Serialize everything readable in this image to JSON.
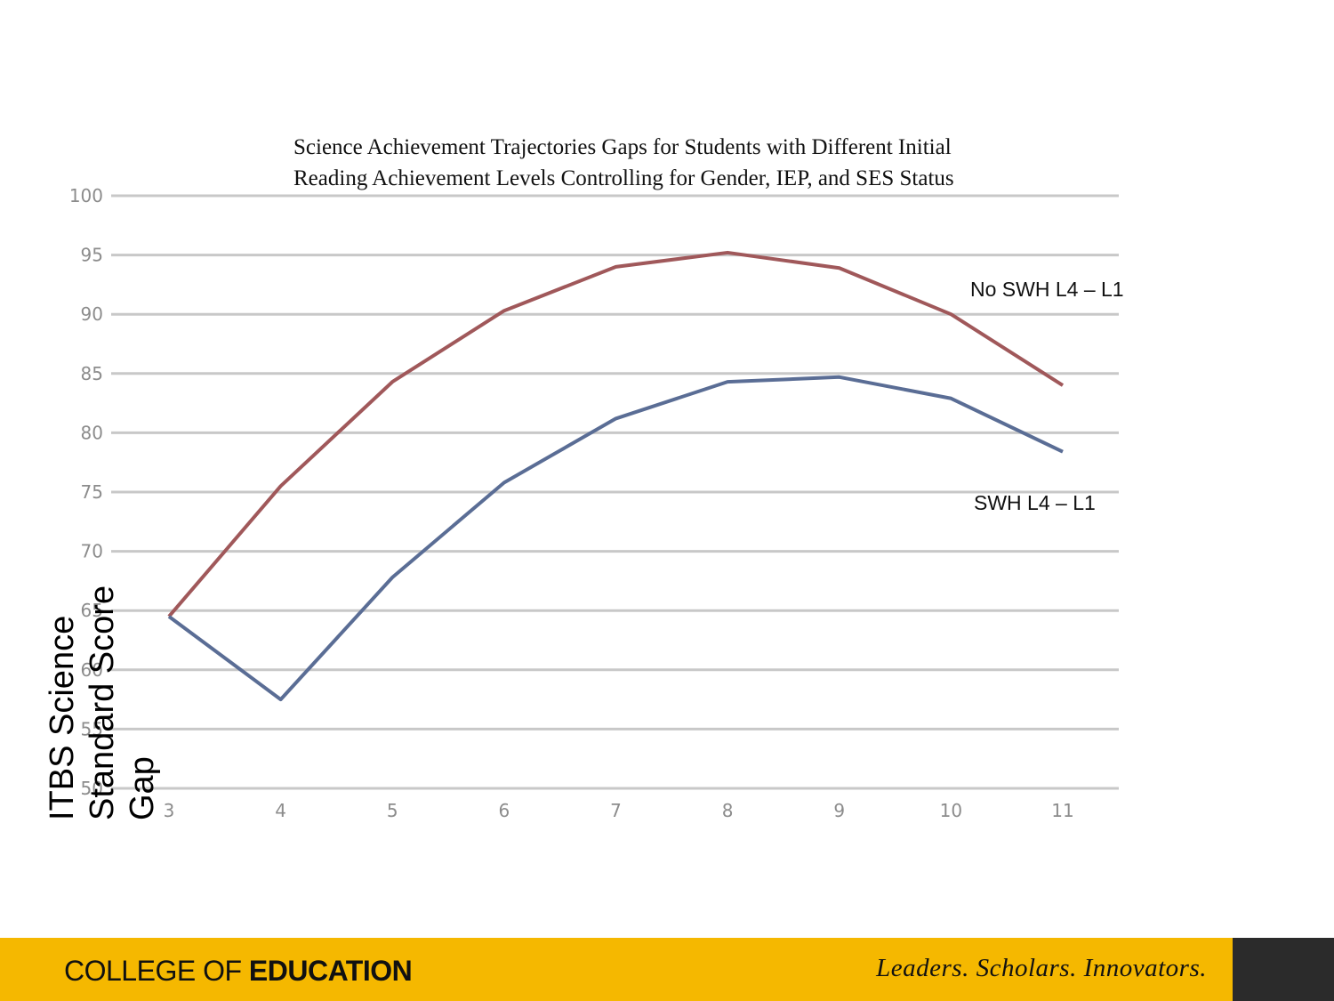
{
  "colors": {
    "series_no_swh": "#a0585a",
    "series_swh": "#5a6d95",
    "grid": "#c8c8c8",
    "footer": "#f5b800",
    "footer_dark": "#2b2b2b"
  },
  "labels": {
    "no_swh": "No SWH L4 – L1",
    "swh": "SWH L4 – L1"
  },
  "footer": {
    "brand_light": "COLLEGE OF ",
    "brand_bold": "EDUCATION",
    "tagline": "Leaders. Scholars. Innovators."
  },
  "chart_data": {
    "type": "line",
    "title_lines": [
      "Science Achievement Trajectories Gaps for Students with Different Initial",
      "Reading Achievement Levels Controlling for Gender, IEP, and SES Status"
    ],
    "ylabel_lines": [
      "ITBS Science",
      "Standard Score",
      "Gap"
    ],
    "xlabel": "",
    "x": [
      3,
      4,
      5,
      6,
      7,
      8,
      9,
      10,
      11
    ],
    "ylim": [
      50,
      100
    ],
    "yticks": [
      50,
      55,
      60,
      65,
      70,
      75,
      80,
      85,
      90,
      95,
      100
    ],
    "grid": true,
    "series": [
      {
        "name": "No SWH L4 – L1",
        "values": [
          64.5,
          75.5,
          84.3,
          90.3,
          94.0,
          95.2,
          93.9,
          90.0,
          84.0
        ]
      },
      {
        "name": "SWH L4 – L1",
        "values": [
          64.5,
          57.5,
          67.8,
          75.8,
          81.2,
          84.3,
          84.7,
          82.9,
          78.4
        ]
      }
    ]
  }
}
